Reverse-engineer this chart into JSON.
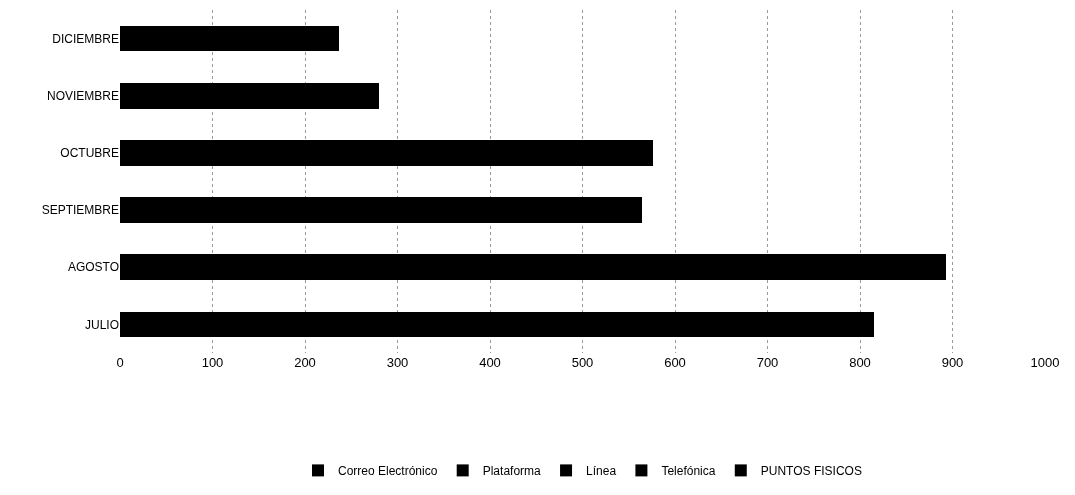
{
  "chart_data": {
    "type": "bar",
    "orientation": "horizontal",
    "stacked": true,
    "categories": [
      "DICIEMBRE",
      "NOVIEMBRE",
      "OCTUBRE",
      "SEPTIEMBRE",
      "AGOSTO",
      "JULIO"
    ],
    "series": [
      {
        "name": "Correo Electrónico",
        "color": "#000000",
        "values": [
          null,
          null,
          null,
          null,
          null,
          null
        ]
      },
      {
        "name": "Plataforma",
        "color": "#000000",
        "values": [
          null,
          null,
          null,
          null,
          null,
          null
        ]
      },
      {
        "name": "Línea",
        "color": "#000000",
        "values": [
          null,
          null,
          null,
          null,
          null,
          null
        ]
      },
      {
        "name": "Telefónica",
        "color": "#000000",
        "values": [
          null,
          null,
          null,
          null,
          null,
          null
        ]
      },
      {
        "name": "PUNTOS FISICOS",
        "color": "#000000",
        "values": [
          237,
          280,
          576,
          564,
          893,
          815
        ]
      }
    ],
    "xlim": [
      0,
      1000
    ],
    "xticks": [
      0,
      100,
      200,
      300,
      400,
      500,
      600,
      700,
      800,
      900,
      1000
    ],
    "grid": "x",
    "legend": "bottom"
  }
}
